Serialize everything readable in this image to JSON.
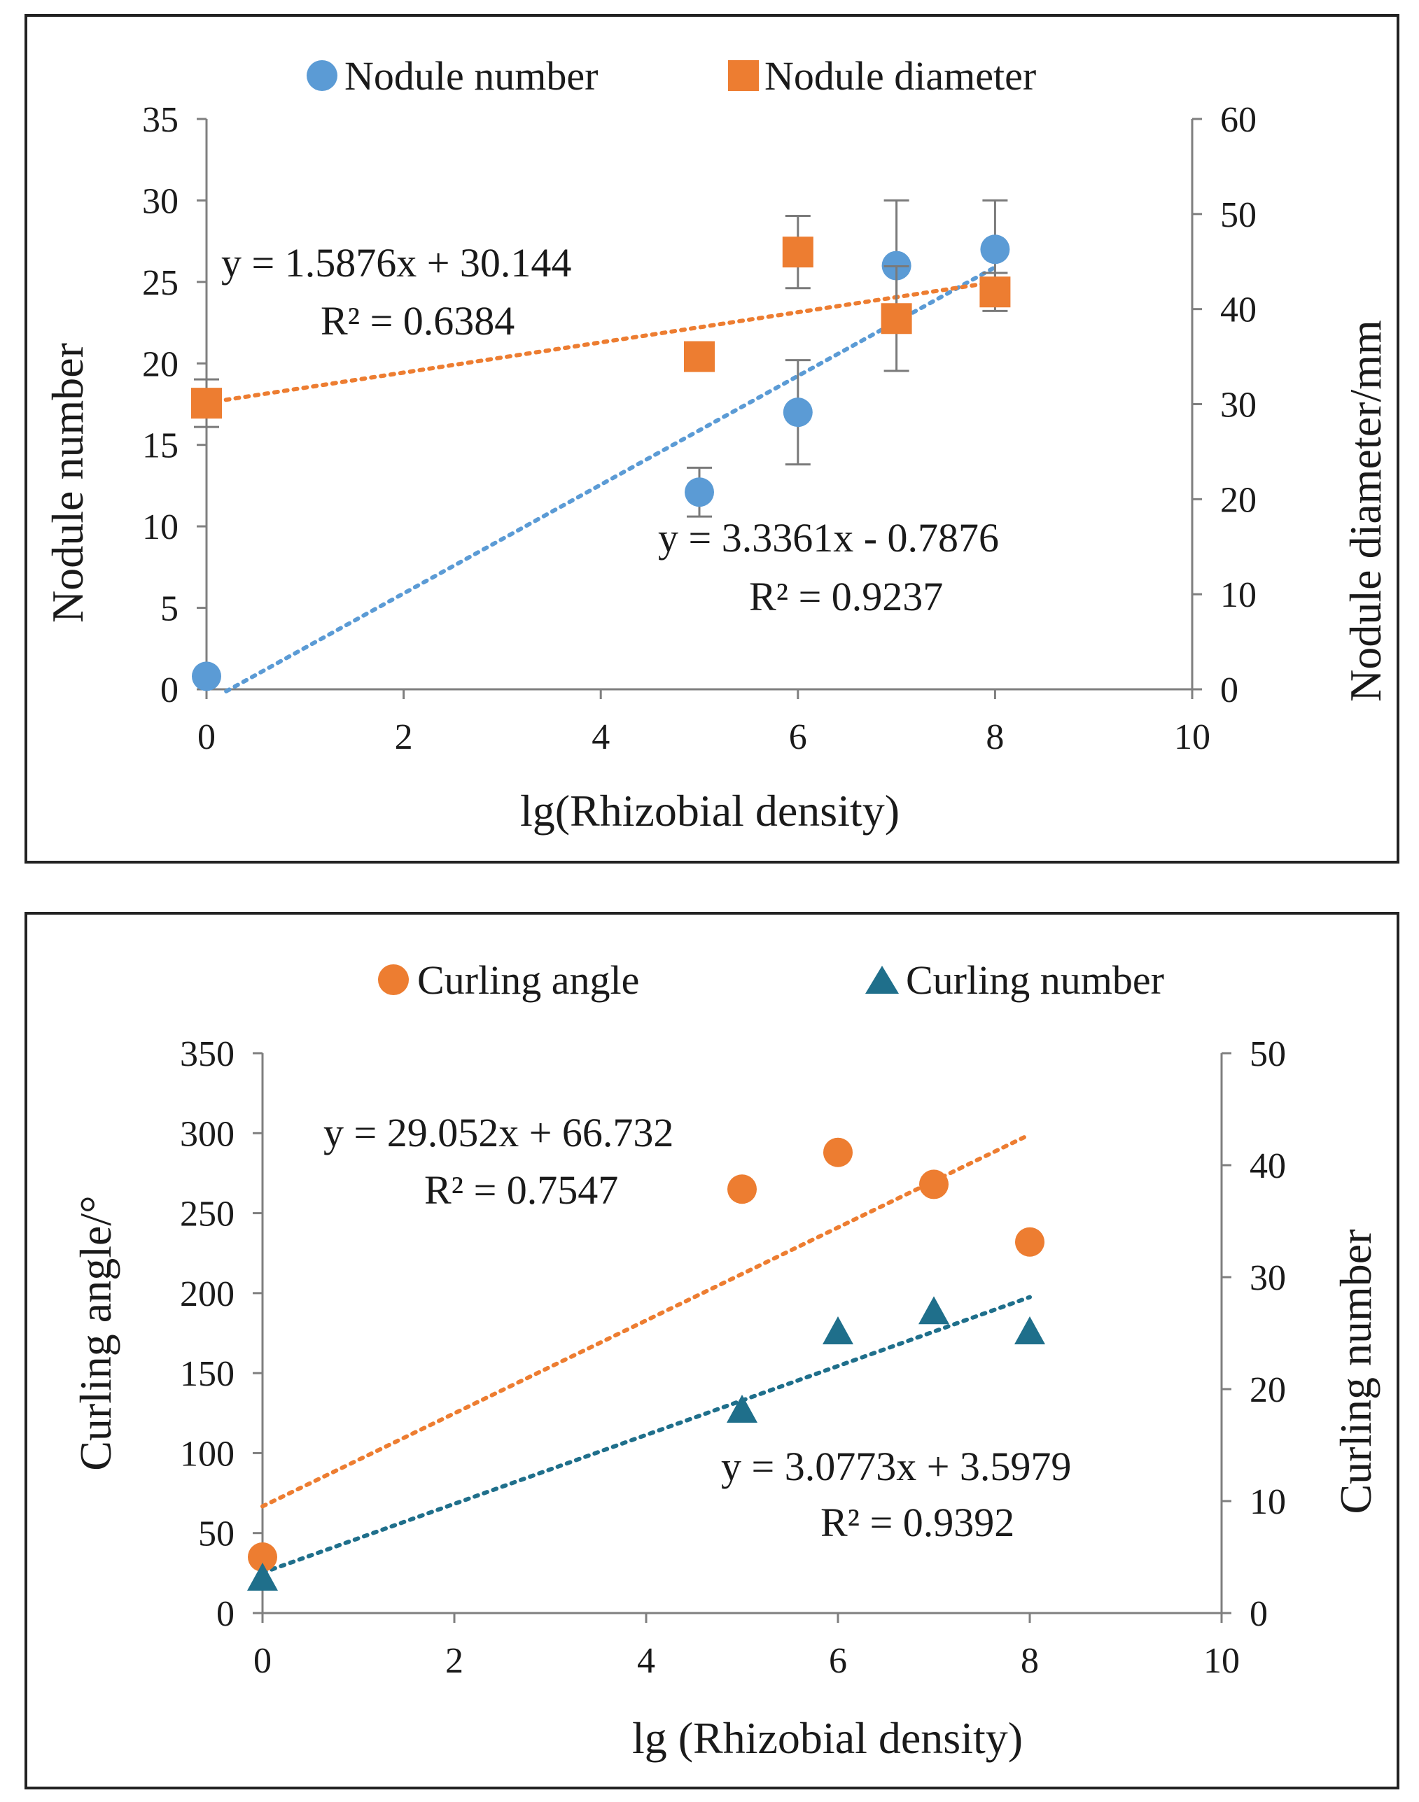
{
  "chart_data": [
    {
      "type": "scatter",
      "xlabel": "lg(Rhizobial density)",
      "ylabel": "Nodule number",
      "y2label": "Nodule diameter/mm",
      "xlim": [
        0,
        10
      ],
      "ylim": [
        0,
        35
      ],
      "y2lim": [
        0,
        60
      ],
      "x_ticks": [
        "0",
        "2",
        "4",
        "6",
        "8",
        "10"
      ],
      "y_ticks": [
        "0",
        "5",
        "10",
        "15",
        "20",
        "25",
        "30",
        "35"
      ],
      "y2_ticks": [
        "0",
        "10",
        "20",
        "30",
        "40",
        "50",
        "60"
      ],
      "legend_position": "top",
      "series": [
        {
          "name": "Nodule number",
          "axis": "left",
          "marker": "circle",
          "color": "#5B9BD5",
          "x": [
            0,
            5,
            6,
            7,
            8
          ],
          "y": [
            0.8,
            12.1,
            17.0,
            26.0,
            27.0
          ],
          "error": [
            0,
            1.5,
            3.2,
            4.0,
            3.0
          ],
          "trendline": {
            "slope": 3.3361,
            "intercept": -0.7876,
            "x_range": [
              0.2,
              8
            ]
          },
          "equation": "y = 3.3361x  - 0.7876",
          "r2": "R² = 0.9237"
        },
        {
          "name": "Nodule diameter",
          "axis": "right",
          "marker": "square",
          "color": "#ED7D31",
          "x": [
            0,
            5,
            6,
            7,
            8
          ],
          "y": [
            30.1,
            35.0,
            46.0,
            39.0,
            41.8
          ],
          "error": [
            2.5,
            1.5,
            3.8,
            5.5,
            2.0
          ],
          "trendline": {
            "slope": 1.5876,
            "intercept": 30.144,
            "x_range": [
              0,
              8
            ]
          },
          "equation": "y = 1.5876x  + 30.144",
          "r2": "R² = 0.6384"
        }
      ]
    },
    {
      "type": "scatter",
      "xlabel": "lg (Rhizobial density)",
      "ylabel": "Curling angle/°",
      "y2label": "Curling number",
      "xlim": [
        0,
        10
      ],
      "ylim": [
        0,
        350
      ],
      "y2lim": [
        0,
        50
      ],
      "x_ticks": [
        "0",
        "2",
        "4",
        "6",
        "8",
        "10"
      ],
      "y_ticks": [
        "0",
        "50",
        "100",
        "150",
        "200",
        "250",
        "300",
        "350"
      ],
      "y2_ticks": [
        "0",
        "10",
        "20",
        "30",
        "40",
        "50"
      ],
      "legend_position": "top",
      "series": [
        {
          "name": "Curling angle",
          "axis": "left",
          "marker": "circle",
          "color": "#ED7D31",
          "x": [
            0,
            5,
            6,
            7,
            8
          ],
          "y": [
            35,
            265,
            288,
            268,
            232
          ],
          "trendline": {
            "slope": 29.052,
            "intercept": 66.732,
            "x_range": [
              0,
              8
            ]
          },
          "equation": "y = 29.052x  + 66.732",
          "r2": "R² = 0.7547"
        },
        {
          "name": "Curling number",
          "axis": "right",
          "marker": "triangle",
          "color": "#1F6F8B",
          "x": [
            0,
            5,
            6,
            7,
            8
          ],
          "y": [
            3.0,
            18.0,
            25.0,
            26.8,
            25.0
          ],
          "trendline": {
            "slope": 3.0773,
            "intercept": 3.5979,
            "x_range": [
              0,
              8
            ]
          },
          "equation": "y = 3.0773x  + 3.5979",
          "r2": "R² = 0.9392"
        }
      ]
    }
  ]
}
